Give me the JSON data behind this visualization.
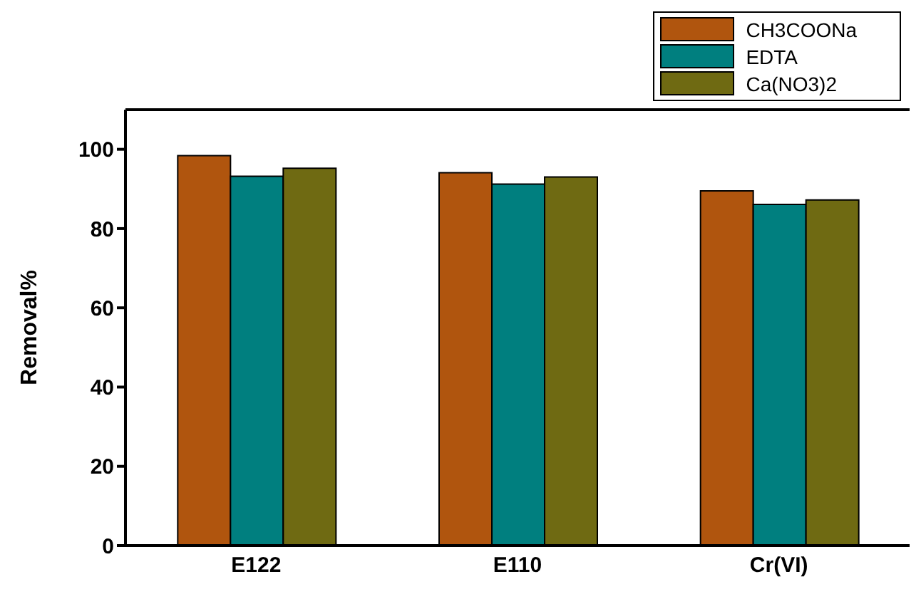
{
  "chart_data": {
    "type": "bar",
    "ylabel": "Removal%",
    "categories": [
      "E122",
      "E110",
      "Cr(VI)"
    ],
    "series": [
      {
        "name": "CH3COONa",
        "color": "#b0550e",
        "values": [
          98.4,
          94.1,
          89.5
        ]
      },
      {
        "name": "EDTA",
        "color": "#007f7f",
        "values": [
          93.2,
          91.2,
          86.1
        ]
      },
      {
        "name": "Ca(NO3)2",
        "color": "#6f6a12",
        "values": [
          95.2,
          93.0,
          87.2
        ]
      }
    ],
    "ylim": [
      0,
      110
    ],
    "yticks": [
      0,
      20,
      40,
      60,
      80,
      100
    ],
    "grid": false,
    "legend": "top right"
  }
}
